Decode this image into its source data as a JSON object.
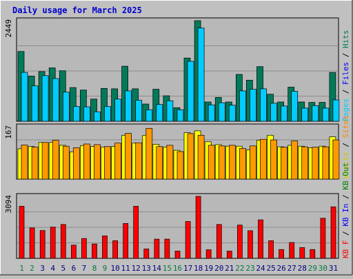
{
  "title": "Daily usage for March 2025",
  "colors": {
    "background": "#c0c0c0",
    "panel": "#b8b8b8",
    "title": "#0000cc",
    "grid": "#8c8c8c",
    "hits": "#007a5a",
    "files": "#007fff",
    "pages": "#00ccff",
    "visits": "#ffff00",
    "sites": "#ff9900",
    "kbout": "#ff8800",
    "kbin": "#00aa00",
    "kbf": "#ff0000",
    "weekday": "#000080",
    "weekend": "#007a3d"
  },
  "legend": {
    "top": [
      {
        "text": "Pages",
        "color": "#00ccff"
      },
      {
        "text": " / ",
        "color": "#000000"
      },
      {
        "text": "Files",
        "color": "#0000ff"
      },
      {
        "text": " / ",
        "color": "#000000"
      },
      {
        "text": "Hits",
        "color": "#007a5a"
      }
    ],
    "middle": [
      {
        "text": "Visits",
        "color": "#cccc00"
      },
      {
        "text": " / ",
        "color": "#000000"
      },
      {
        "text": "Sites",
        "color": "#ff8800"
      }
    ],
    "bottom": [
      {
        "text": "KB F",
        "color": "#ff0000"
      },
      {
        "text": " / ",
        "color": "#000000"
      },
      {
        "text": "KB In",
        "color": "#0000ff"
      },
      {
        "text": " / ",
        "color": "#000000"
      },
      {
        "text": "KB Out",
        "color": "#008000"
      }
    ]
  },
  "chart_data": [
    {
      "type": "bar",
      "name": "hits-files-pages",
      "ymax_label": "2449",
      "ymax": 2449,
      "categories": [
        "1",
        "2",
        "3",
        "4",
        "5",
        "6",
        "7",
        "8",
        "9",
        "10",
        "11",
        "12",
        "13",
        "14",
        "15",
        "16",
        "17",
        "18",
        "19",
        "20",
        "21",
        "22",
        "23",
        "24",
        "25",
        "26",
        "27",
        "28",
        "29",
        "30",
        "31"
      ],
      "weekend": [
        1,
        2,
        8,
        9,
        15,
        16,
        22,
        23,
        29,
        30
      ],
      "series": [
        {
          "name": "Hits",
          "color": "#007a5a",
          "values": [
            1700,
            1100,
            1210,
            1300,
            1230,
            820,
            760,
            540,
            800,
            790,
            1340,
            790,
            420,
            780,
            620,
            330,
            1540,
            2449,
            470,
            580,
            470,
            1140,
            1000,
            1330,
            660,
            470,
            830,
            470,
            460,
            460,
            1190
          ]
        },
        {
          "name": "Pages",
          "color": "#00ccff",
          "values": [
            1190,
            860,
            1110,
            1040,
            710,
            360,
            350,
            230,
            360,
            540,
            740,
            510,
            280,
            410,
            500,
            280,
            1460,
            2270,
            400,
            450,
            390,
            740,
            780,
            790,
            440,
            370,
            730,
            320,
            380,
            320,
            520
          ]
        }
      ]
    },
    {
      "type": "bar",
      "name": "visits-sites",
      "ymax_label": "167",
      "ymax": 167,
      "categories": [
        "1",
        "2",
        "3",
        "4",
        "5",
        "6",
        "7",
        "8",
        "9",
        "10",
        "11",
        "12",
        "13",
        "14",
        "15",
        "16",
        "17",
        "18",
        "19",
        "20",
        "21",
        "22",
        "23",
        "24",
        "25",
        "26",
        "27",
        "28",
        "29",
        "30",
        "31"
      ],
      "series": [
        {
          "name": "Visits",
          "color": "#ffff00",
          "values": [
            97,
            104,
            117,
            117,
            108,
            87,
            107,
            104,
            102,
            104,
            140,
            115,
            140,
            111,
            102,
            92,
            148,
            154,
            119,
            110,
            105,
            105,
            93,
            124,
            140,
            103,
            108,
            105,
            100,
            105,
            135
          ]
        },
        {
          "name": "Sites",
          "color": "#ff9900",
          "values": [
            109,
            102,
            117,
            124,
            105,
            100,
            112,
            110,
            104,
            115,
            146,
            116,
            162,
            104,
            108,
            88,
            145,
            140,
            108,
            106,
            108,
            98,
            106,
            127,
            125,
            102,
            122,
            103,
            102,
            103,
            125
          ]
        }
      ]
    },
    {
      "type": "bar",
      "name": "kb",
      "ymax_label": "3094",
      "ymax": 3094,
      "categories": [
        "1",
        "2",
        "3",
        "4",
        "5",
        "6",
        "7",
        "8",
        "9",
        "10",
        "11",
        "12",
        "13",
        "14",
        "15",
        "16",
        "17",
        "18",
        "19",
        "20",
        "21",
        "22",
        "23",
        "24",
        "25",
        "26",
        "27",
        "28",
        "29",
        "30",
        "31"
      ],
      "series": [
        {
          "name": "KB F",
          "color": "#ff0000",
          "values": [
            2600,
            1520,
            1390,
            1560,
            1690,
            660,
            990,
            720,
            1120,
            880,
            1740,
            2600,
            470,
            960,
            960,
            360,
            1840,
            3094,
            430,
            1690,
            360,
            1660,
            1380,
            1920,
            880,
            440,
            790,
            540,
            440,
            2000,
            2570
          ]
        }
      ]
    }
  ]
}
